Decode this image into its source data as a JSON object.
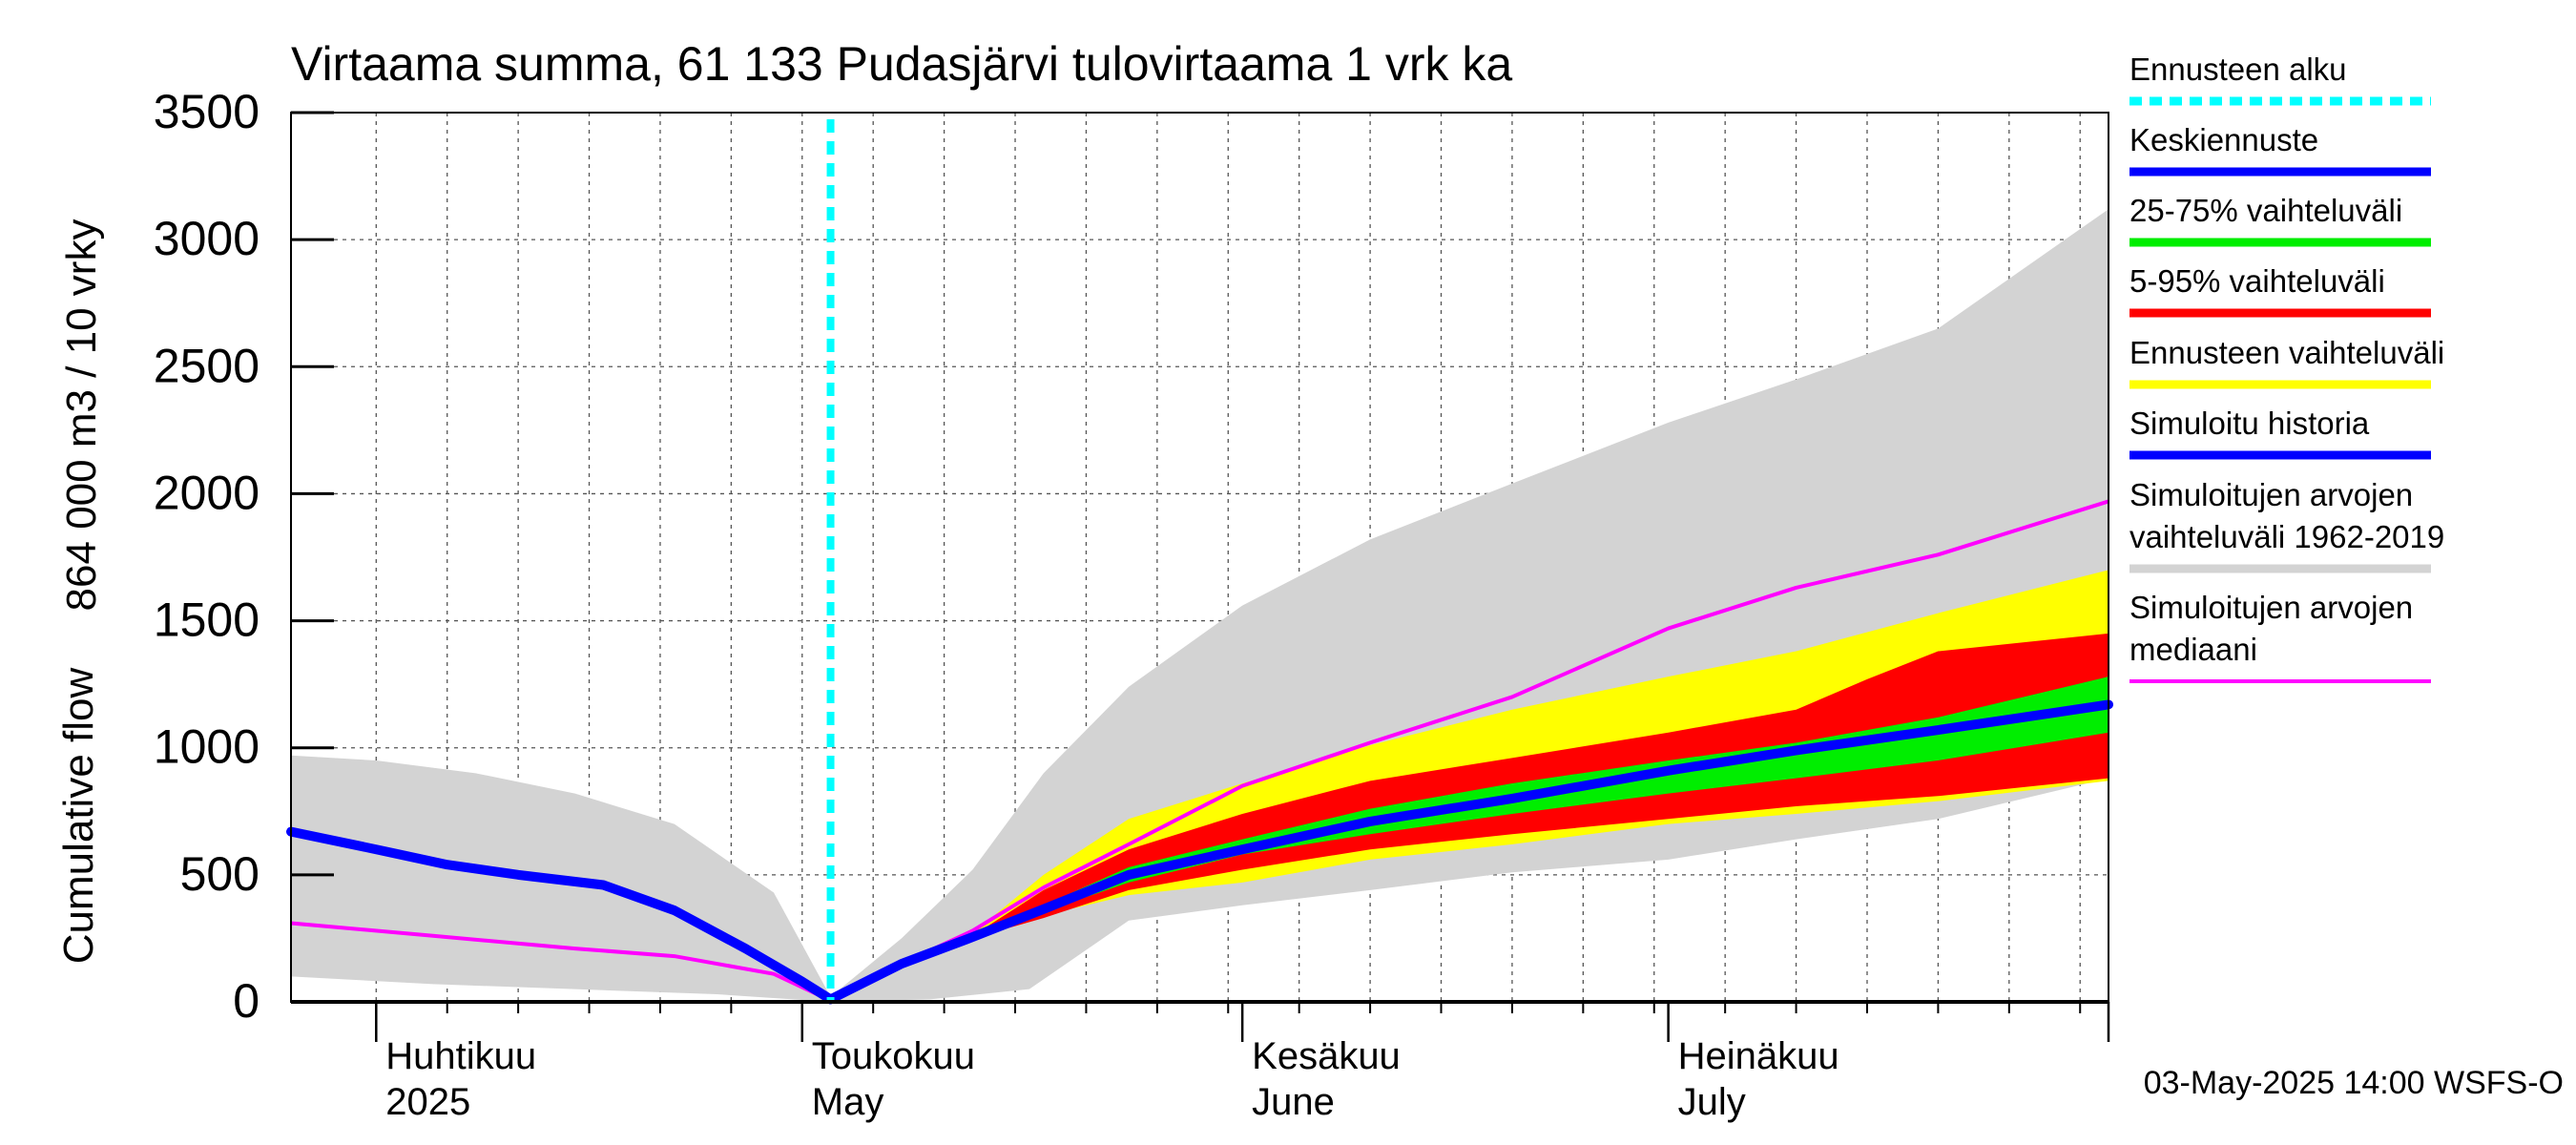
{
  "chart_data": {
    "type": "area",
    "title": "Virtaama summa, 61 133 Pudasjärvi tulovirtaama 1 vrk ka",
    "ylabel_line1": "864 000 m3 / 10 vrky",
    "ylabel_line2": "Cumulative flow",
    "ylim": [
      0,
      3500
    ],
    "yticks": [
      0,
      500,
      1000,
      1500,
      2000,
      2500,
      3000,
      3500
    ],
    "grid": true,
    "x_start": "2025-03-26",
    "x_end": "2025-08-01",
    "forecast_start": "2025-05-03",
    "month_labels": [
      {
        "date": "2025-04-01",
        "line1": "Huhtikuu",
        "line2": "2025"
      },
      {
        "date": "2025-05-01",
        "line1": "Toukokuu",
        "line2": "May"
      },
      {
        "date": "2025-06-01",
        "line1": "Kesäkuu",
        "line2": "June"
      },
      {
        "date": "2025-07-01",
        "line1": "Heinäkuu",
        "line2": "July"
      }
    ],
    "timestamp": "03-May-2025 14:00 WSFS-O",
    "legend_position": "right",
    "legend": [
      {
        "key": "forecast_start",
        "label": "Ennusteen alku",
        "color": "#00ffff",
        "style": "dotted"
      },
      {
        "key": "mean_forecast",
        "label": "Keskiennuste",
        "color": "#0000ff"
      },
      {
        "key": "band_25_75",
        "label": "25-75% vaihteluväli",
        "color": "#00ee00"
      },
      {
        "key": "band_5_95",
        "label": "5-95% vaihteluväli",
        "color": "#ff0000"
      },
      {
        "key": "forecast_range",
        "label": "Ennusteen vaihteluväli",
        "color": "#ffff00"
      },
      {
        "key": "simulated_history",
        "label": "Simuloitu historia",
        "color": "#0000ff"
      },
      {
        "key": "historical_range",
        "label": "Simuloitujen arvojen vaihteluväli 1962-2019",
        "lines": [
          "Simuloitujen arvojen",
          "vaihteluväli 1962-2019"
        ],
        "color": "#d3d3d3"
      },
      {
        "key": "historical_median",
        "label": "Simuloitujen arvojen mediaani",
        "lines": [
          "Simuloitujen arvojen",
          "mediaani"
        ],
        "color": "#ff00ff"
      }
    ],
    "series": {
      "historical_range": {
        "color": "#d3d3d3",
        "upper": [
          [
            "2025-03-26",
            970
          ],
          [
            "2025-04-01",
            950
          ],
          [
            "2025-04-08",
            900
          ],
          [
            "2025-04-15",
            820
          ],
          [
            "2025-04-22",
            700
          ],
          [
            "2025-04-29",
            430
          ],
          [
            "2025-05-03",
            20
          ],
          [
            "2025-05-08",
            250
          ],
          [
            "2025-05-13",
            520
          ],
          [
            "2025-05-18",
            900
          ],
          [
            "2025-05-24",
            1240
          ],
          [
            "2025-06-01",
            1560
          ],
          [
            "2025-06-10",
            1820
          ],
          [
            "2025-06-20",
            2040
          ],
          [
            "2025-07-01",
            2280
          ],
          [
            "2025-07-10",
            2450
          ],
          [
            "2025-07-20",
            2650
          ],
          [
            "2025-08-01",
            3120
          ]
        ],
        "lower": [
          [
            "2025-03-26",
            100
          ],
          [
            "2025-04-05",
            70
          ],
          [
            "2025-04-15",
            50
          ],
          [
            "2025-04-25",
            30
          ],
          [
            "2025-05-03",
            0
          ],
          [
            "2025-05-10",
            10
          ],
          [
            "2025-05-17",
            50
          ],
          [
            "2025-05-24",
            320
          ],
          [
            "2025-06-01",
            380
          ],
          [
            "2025-06-10",
            440
          ],
          [
            "2025-06-20",
            510
          ],
          [
            "2025-07-01",
            560
          ],
          [
            "2025-07-10",
            640
          ],
          [
            "2025-07-20",
            720
          ],
          [
            "2025-08-01",
            880
          ]
        ]
      },
      "forecast_range": {
        "color": "#ffff00",
        "upper": [
          [
            "2025-05-08",
            160
          ],
          [
            "2025-05-13",
            270
          ],
          [
            "2025-05-18",
            500
          ],
          [
            "2025-05-24",
            720
          ],
          [
            "2025-06-01",
            860
          ],
          [
            "2025-06-10",
            1010
          ],
          [
            "2025-06-20",
            1150
          ],
          [
            "2025-07-01",
            1280
          ],
          [
            "2025-07-10",
            1380
          ],
          [
            "2025-07-20",
            1530
          ],
          [
            "2025-08-01",
            1700
          ]
        ],
        "lower": [
          [
            "2025-05-08",
            150
          ],
          [
            "2025-05-13",
            250
          ],
          [
            "2025-05-18",
            340
          ],
          [
            "2025-05-24",
            420
          ],
          [
            "2025-06-01",
            470
          ],
          [
            "2025-06-10",
            560
          ],
          [
            "2025-06-20",
            620
          ],
          [
            "2025-07-01",
            700
          ],
          [
            "2025-07-10",
            740
          ],
          [
            "2025-07-20",
            790
          ],
          [
            "2025-08-01",
            870
          ]
        ]
      },
      "band_5_95": {
        "color": "#ff0000",
        "upper": [
          [
            "2025-05-08",
            160
          ],
          [
            "2025-05-13",
            260
          ],
          [
            "2025-05-18",
            440
          ],
          [
            "2025-05-24",
            600
          ],
          [
            "2025-06-01",
            740
          ],
          [
            "2025-06-10",
            870
          ],
          [
            "2025-06-20",
            960
          ],
          [
            "2025-07-01",
            1060
          ],
          [
            "2025-07-10",
            1150
          ],
          [
            "2025-07-15",
            1270
          ],
          [
            "2025-07-20",
            1380
          ],
          [
            "2025-08-01",
            1450
          ]
        ],
        "lower": [
          [
            "2025-05-08",
            150
          ],
          [
            "2025-05-13",
            250
          ],
          [
            "2025-05-18",
            330
          ],
          [
            "2025-05-24",
            440
          ],
          [
            "2025-06-01",
            520
          ],
          [
            "2025-06-10",
            600
          ],
          [
            "2025-06-20",
            660
          ],
          [
            "2025-07-01",
            720
          ],
          [
            "2025-07-10",
            770
          ],
          [
            "2025-07-20",
            810
          ],
          [
            "2025-08-01",
            880
          ]
        ]
      },
      "band_25_75": {
        "color": "#00ee00",
        "upper": [
          [
            "2025-05-08",
            155
          ],
          [
            "2025-05-13",
            255
          ],
          [
            "2025-05-18",
            380
          ],
          [
            "2025-05-24",
            530
          ],
          [
            "2025-06-01",
            640
          ],
          [
            "2025-06-10",
            760
          ],
          [
            "2025-06-20",
            860
          ],
          [
            "2025-07-01",
            950
          ],
          [
            "2025-07-10",
            1020
          ],
          [
            "2025-07-20",
            1120
          ],
          [
            "2025-08-01",
            1280
          ]
        ],
        "lower": [
          [
            "2025-05-08",
            150
          ],
          [
            "2025-05-13",
            250
          ],
          [
            "2025-05-18",
            355
          ],
          [
            "2025-05-24",
            470
          ],
          [
            "2025-06-01",
            580
          ],
          [
            "2025-06-10",
            660
          ],
          [
            "2025-06-20",
            740
          ],
          [
            "2025-07-01",
            820
          ],
          [
            "2025-07-10",
            880
          ],
          [
            "2025-07-20",
            950
          ],
          [
            "2025-08-01",
            1060
          ]
        ]
      },
      "mean_forecast": {
        "color": "#0000ff",
        "points": [
          [
            "2025-05-03",
            10
          ],
          [
            "2025-05-08",
            150
          ],
          [
            "2025-05-13",
            255
          ],
          [
            "2025-05-18",
            365
          ],
          [
            "2025-05-24",
            500
          ],
          [
            "2025-06-01",
            600
          ],
          [
            "2025-06-10",
            710
          ],
          [
            "2025-06-20",
            800
          ],
          [
            "2025-07-01",
            910
          ],
          [
            "2025-07-10",
            990
          ],
          [
            "2025-07-20",
            1070
          ],
          [
            "2025-08-01",
            1170
          ]
        ]
      },
      "simulated_history": {
        "color": "#0000ff",
        "points": [
          [
            "2025-03-26",
            670
          ],
          [
            "2025-04-01",
            600
          ],
          [
            "2025-04-06",
            540
          ],
          [
            "2025-04-11",
            500
          ],
          [
            "2025-04-17",
            460
          ],
          [
            "2025-04-22",
            360
          ],
          [
            "2025-04-27",
            210
          ],
          [
            "2025-05-01",
            80
          ],
          [
            "2025-05-03",
            10
          ]
        ]
      },
      "historical_median": {
        "color": "#ff00ff",
        "points": [
          [
            "2025-03-26",
            310
          ],
          [
            "2025-04-05",
            260
          ],
          [
            "2025-04-15",
            210
          ],
          [
            "2025-04-22",
            180
          ],
          [
            "2025-04-29",
            110
          ],
          [
            "2025-05-03",
            5
          ],
          [
            "2025-05-08",
            150
          ],
          [
            "2025-05-13",
            280
          ],
          [
            "2025-05-18",
            450
          ],
          [
            "2025-05-24",
            620
          ],
          [
            "2025-06-01",
            850
          ],
          [
            "2025-06-10",
            1020
          ],
          [
            "2025-06-20",
            1200
          ],
          [
            "2025-07-01",
            1470
          ],
          [
            "2025-07-10",
            1630
          ],
          [
            "2025-07-20",
            1760
          ],
          [
            "2025-08-01",
            1970
          ]
        ]
      }
    }
  }
}
